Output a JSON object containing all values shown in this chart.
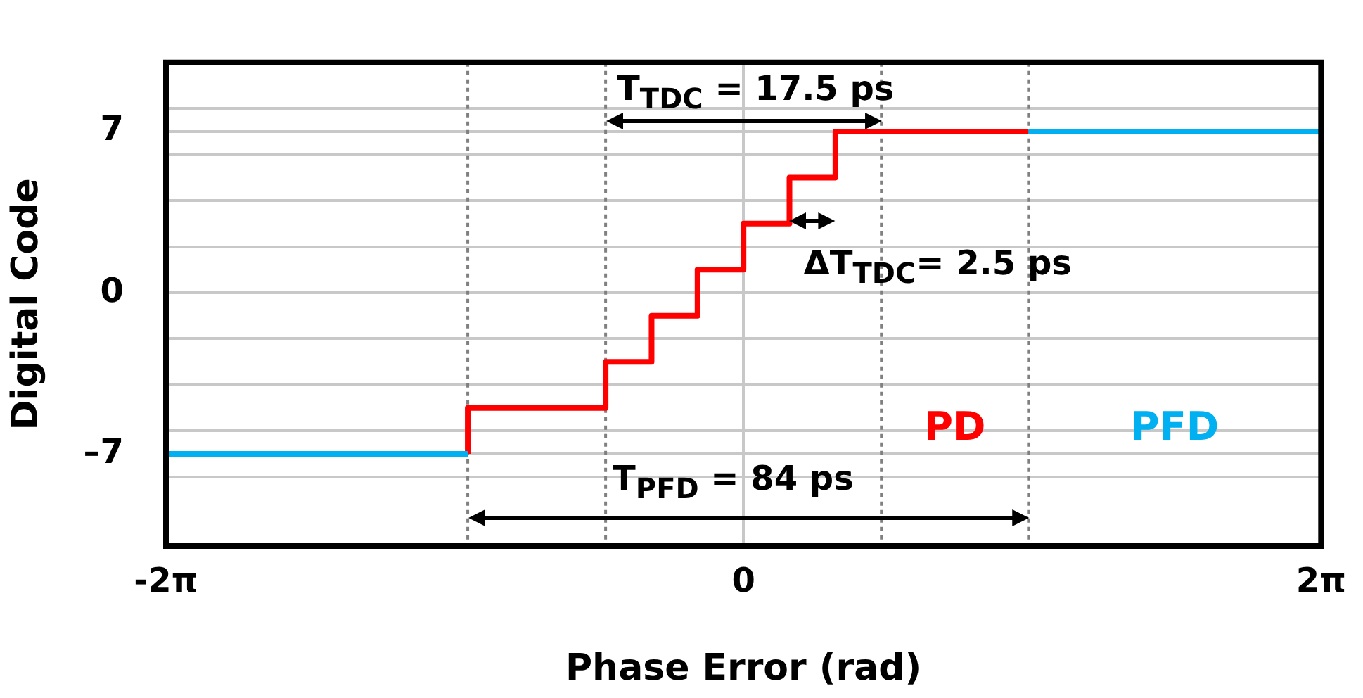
{
  "chart_data": {
    "type": "step",
    "xlabel": "Phase Error (rad)",
    "ylabel": "Digital Code",
    "xlim": [
      -6.283,
      6.283
    ],
    "xticks": [
      {
        "value": -6.283,
        "label": "-2π"
      },
      0,
      {
        "value": 6.283,
        "label": "2π"
      }
    ],
    "ylim": [
      -11,
      10
    ],
    "yticks": [
      {
        "value": -8,
        "label": null
      },
      {
        "value": -7,
        "label": "–7"
      },
      {
        "value": -6,
        "label": null
      },
      {
        "value": -4,
        "label": null
      },
      {
        "value": -2,
        "label": null
      },
      0,
      {
        "value": 2,
        "label": null
      },
      {
        "value": 4,
        "label": null
      },
      {
        "value": 6,
        "label": null
      },
      7,
      {
        "value": 8,
        "label": null
      }
    ],
    "grid": true,
    "legend": false,
    "marker": "none",
    "line_style": "solid",
    "series": [
      {
        "name": "PFD",
        "color": "#00b0f0",
        "x": [
          -6.283,
          -3,
          0,
          3.1,
          6.283
        ],
        "values": [
          -7,
          -7,
          null,
          7,
          7
        ]
      },
      {
        "name": "PD",
        "color": "#ff0000",
        "x": [
          -3,
          -1.5,
          -1,
          -0.5,
          0,
          0.5,
          1,
          1.5,
          3.1
        ],
        "values": [
          -7,
          -5,
          -3,
          -1,
          1,
          3,
          5,
          7,
          7
        ]
      }
    ],
    "ref_lines": [
      {
        "axis": "x",
        "value": -3,
        "color": "#808080",
        "line_style": "dotted"
      },
      {
        "axis": "x",
        "value": -1.5,
        "color": "#808080",
        "line_style": "dotted"
      },
      {
        "axis": "x",
        "value": 1.5,
        "color": "#808080",
        "line_style": "dotted"
      },
      {
        "axis": "x",
        "value": 3.1,
        "color": "#808080",
        "line_style": "dotted"
      }
    ],
    "annotations": [
      "T$_{TDC}$ = 17.5 ps",
      "ΔT$_{TDC}$= 2.5 ps",
      "T$_{PFD}$ = 84 ps"
    ]
  }
}
